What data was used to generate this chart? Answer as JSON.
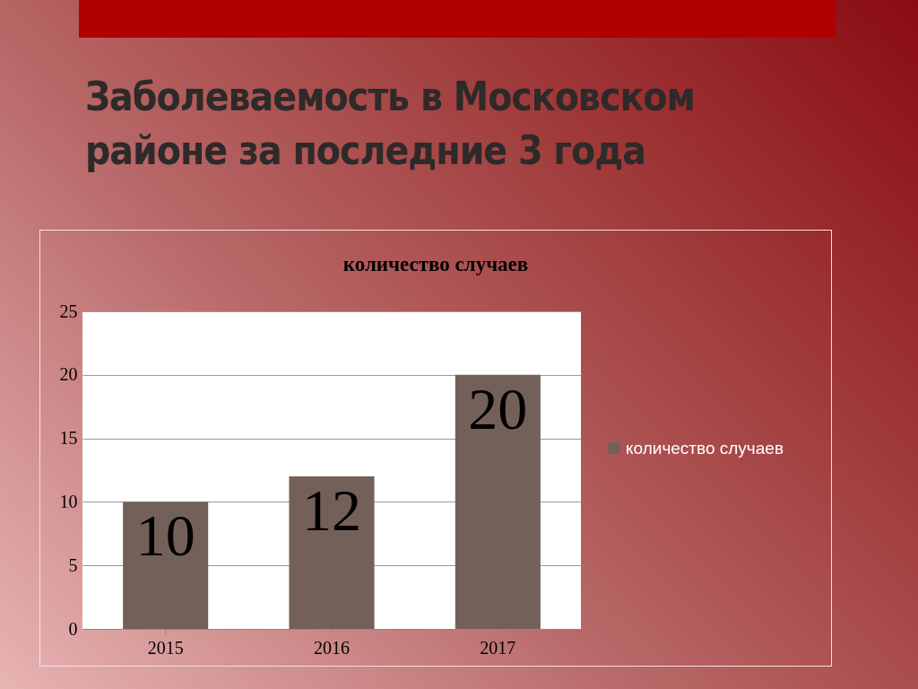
{
  "chart_data": {
    "type": "bar",
    "title": "Заболеваемость в Московском районе за последние 3 года",
    "subtitle": "количество случаев",
    "categories": [
      "2015",
      "2016",
      "2017"
    ],
    "series": [
      {
        "name": "количество случаев",
        "color": "#736058",
        "values": [
          10,
          12,
          20
        ]
      }
    ],
    "ylim": [
      0,
      25
    ],
    "yticks": [
      0,
      5,
      10,
      15,
      20,
      25
    ],
    "grid": "y",
    "legend": "right",
    "data_labels": true
  }
}
